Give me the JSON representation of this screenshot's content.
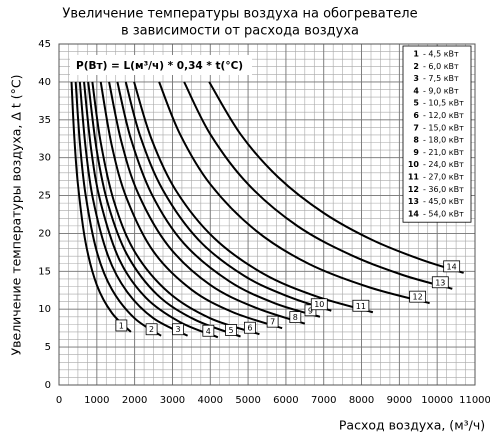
{
  "chart_data": {
    "type": "line",
    "title": [
      "Увеличение температуры воздуха на обогревателе",
      "в зависимости от расхода воздуха"
    ],
    "xlabel": "Расход воздуха, (м³/ч)",
    "ylabel": "Увеличение температуры воздуха, Δ t (°C)",
    "annotation": "P(Вт) = L(м³/ч) * 0,34 * t(°C)",
    "xlim": [
      0,
      11000
    ],
    "ylim": [
      0,
      45
    ],
    "xticks": [
      0,
      1000,
      2000,
      3000,
      4000,
      5000,
      6000,
      7000,
      8000,
      9000,
      10000,
      11000
    ],
    "yticks": [
      0,
      5,
      10,
      15,
      20,
      25,
      30,
      35,
      40,
      45
    ],
    "grid": true,
    "minor_grid": {
      "x": 250,
      "y": 1
    },
    "legend": "top-right",
    "series": [
      {
        "name": "1",
        "label": "- 4,5 кВт",
        "color": "#000000",
        "x": [
          331,
          400,
          500,
          700,
          1000,
          1400,
          1900
        ],
        "values": [
          40,
          33.1,
          26.5,
          18.9,
          13.2,
          9.5,
          7.0
        ]
      },
      {
        "name": "2",
        "label": "- 6,0 кВт",
        "color": "#000000",
        "x": [
          441,
          550,
          700,
          1000,
          1400,
          2000,
          2700
        ],
        "values": [
          40,
          32.1,
          25.2,
          17.6,
          12.6,
          8.8,
          6.5
        ]
      },
      {
        "name": "3",
        "label": "- 7,5 кВт",
        "color": "#000000",
        "x": [
          551,
          700,
          900,
          1300,
          1800,
          2500,
          3400
        ],
        "values": [
          40,
          31.5,
          24.5,
          17.0,
          12.3,
          8.8,
          6.5
        ]
      },
      {
        "name": "4",
        "label": "- 9,0 кВт",
        "color": "#000000",
        "x": [
          662,
          850,
          1100,
          1600,
          2300,
          3200,
          4200
        ],
        "values": [
          40,
          31.1,
          24.1,
          16.5,
          11.5,
          8.3,
          6.3
        ]
      },
      {
        "name": "5",
        "label": "- 10,5 кВт",
        "color": "#000000",
        "x": [
          772,
          1000,
          1300,
          1800,
          2600,
          3600,
          4800
        ],
        "values": [
          40,
          30.9,
          23.8,
          17.2,
          11.9,
          8.6,
          6.4
        ]
      },
      {
        "name": "6",
        "label": "- 12,0 кВт",
        "color": "#000000",
        "x": [
          882,
          1100,
          1450,
          2000,
          2900,
          4000,
          5300
        ],
        "values": [
          40,
          32.1,
          24.3,
          17.6,
          12.2,
          8.8,
          6.7
        ]
      },
      {
        "name": "7",
        "label": "- 15,0 кВт",
        "color": "#000000",
        "x": [
          1103,
          1400,
          1800,
          2500,
          3500,
          4600,
          5900
        ],
        "values": [
          40,
          31.5,
          24.5,
          17.6,
          12.6,
          9.6,
          7.5
        ]
      },
      {
        "name": "8",
        "label": "- 18,0 кВт",
        "color": "#000000",
        "x": [
          1324,
          1650,
          2100,
          2900,
          4000,
          5200,
          6500
        ],
        "values": [
          40,
          32.1,
          25.2,
          18.3,
          13.2,
          10.2,
          8.1
        ]
      },
      {
        "name": "9",
        "label": "- 21,0 кВт",
        "color": "#000000",
        "x": [
          1544,
          1900,
          2450,
          3300,
          4500,
          5700,
          6900
        ],
        "values": [
          40,
          32.5,
          25.2,
          18.7,
          13.7,
          10.8,
          9.0
        ]
      },
      {
        "name": "10",
        "label": "- 24,0 кВт",
        "color": "#000000",
        "x": [
          1765,
          2150,
          2750,
          3700,
          4900,
          6100,
          7200
        ],
        "values": [
          40,
          32.8,
          25.7,
          19.1,
          14.4,
          11.6,
          9.8
        ]
      },
      {
        "name": "11",
        "label": "- 27,0 кВт",
        "color": "#000000",
        "x": [
          1985,
          2450,
          3100,
          4100,
          5400,
          6800,
          8300
        ],
        "values": [
          40,
          32.4,
          25.6,
          19.4,
          14.7,
          11.7,
          9.6
        ]
      },
      {
        "name": "12",
        "label": "- 36,0 кВт",
        "color": "#000000",
        "x": [
          2647,
          3200,
          4000,
          5200,
          6600,
          8200,
          9800
        ],
        "values": [
          40,
          33.1,
          26.5,
          20.4,
          16.0,
          12.9,
          10.8
        ]
      },
      {
        "name": "13",
        "label": "- 45,0 кВт",
        "color": "#000000",
        "x": [
          3309,
          4000,
          5000,
          6300,
          7700,
          9100,
          10400
        ],
        "values": [
          40,
          33.1,
          26.5,
          21.0,
          17.2,
          14.5,
          12.7
        ]
      },
      {
        "name": "14",
        "label": "- 54,0 кВт",
        "color": "#000000",
        "x": [
          3971,
          4800,
          5800,
          7000,
          8300,
          9600,
          10700
        ],
        "values": [
          40,
          33.1,
          27.4,
          22.7,
          19.1,
          16.5,
          14.8
        ]
      }
    ]
  }
}
